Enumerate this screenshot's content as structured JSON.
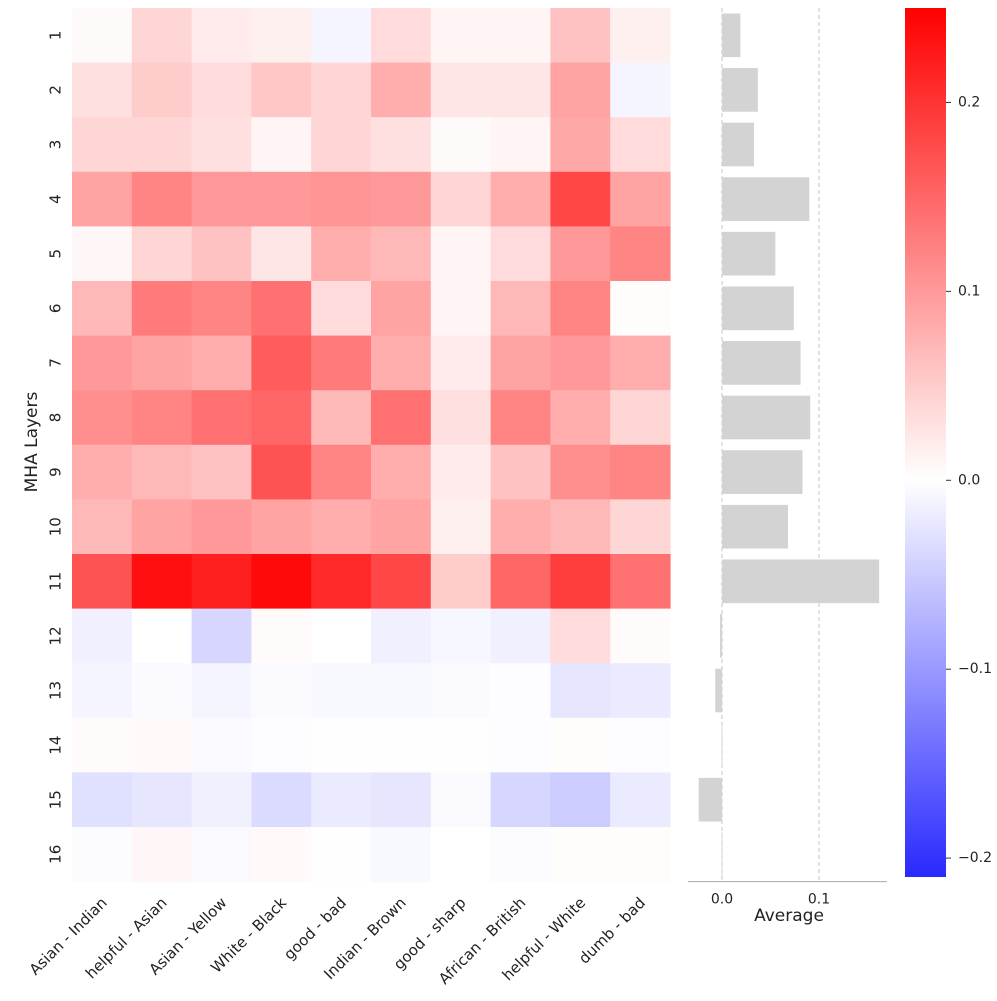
{
  "chart_data": [
    {
      "type": "heatmap",
      "title": "",
      "xlabel": "",
      "ylabel": "MHA Layers",
      "columns": [
        "Asian - Indian",
        "helpful - Asian",
        "Asian - Yellow",
        "White - Black",
        "good - bad",
        "Indian - Brown",
        "good - sharp",
        "African - British",
        "helpful - White",
        "dumb - bad"
      ],
      "rows": [
        "1",
        "2",
        "3",
        "4",
        "5",
        "6",
        "7",
        "8",
        "9",
        "10",
        "11",
        "12",
        "13",
        "14",
        "15",
        "16"
      ],
      "values": [
        [
          0.005,
          0.04,
          0.02,
          0.015,
          -0.01,
          0.035,
          0.01,
          0.01,
          0.06,
          0.015
        ],
        [
          0.03,
          0.05,
          0.035,
          0.055,
          0.04,
          0.08,
          0.025,
          0.025,
          0.09,
          -0.01
        ],
        [
          0.04,
          0.04,
          0.03,
          0.01,
          0.04,
          0.03,
          0.005,
          0.01,
          0.085,
          0.035
        ],
        [
          0.09,
          0.12,
          0.1,
          0.1,
          0.105,
          0.1,
          0.04,
          0.08,
          0.18,
          0.09
        ],
        [
          0.008,
          0.04,
          0.06,
          0.025,
          0.08,
          0.07,
          0.01,
          0.035,
          0.1,
          0.12
        ],
        [
          0.07,
          0.13,
          0.12,
          0.14,
          0.035,
          0.09,
          0.01,
          0.07,
          0.12,
          0.003
        ],
        [
          0.1,
          0.09,
          0.08,
          0.16,
          0.13,
          0.08,
          0.02,
          0.09,
          0.1,
          0.08
        ],
        [
          0.11,
          0.12,
          0.14,
          0.15,
          0.07,
          0.14,
          0.03,
          0.12,
          0.08,
          0.04
        ],
        [
          0.08,
          0.07,
          0.06,
          0.17,
          0.12,
          0.08,
          0.02,
          0.06,
          0.11,
          0.12
        ],
        [
          0.07,
          0.09,
          0.1,
          0.09,
          0.08,
          0.09,
          0.015,
          0.08,
          0.07,
          0.04
        ],
        [
          0.17,
          0.235,
          0.22,
          0.24,
          0.21,
          0.18,
          0.05,
          0.15,
          0.19,
          0.14
        ],
        [
          -0.015,
          0.0,
          -0.04,
          0.004,
          0.0,
          -0.015,
          -0.008,
          -0.015,
          0.035,
          0.004
        ],
        [
          -0.01,
          -0.005,
          -0.01,
          -0.005,
          -0.007,
          -0.007,
          -0.004,
          -0.002,
          -0.025,
          -0.02
        ],
        [
          0.004,
          0.006,
          -0.006,
          -0.002,
          -0.001,
          -0.001,
          -0.001,
          -0.002,
          0.003,
          -0.002
        ],
        [
          -0.03,
          -0.025,
          -0.015,
          -0.035,
          -0.02,
          -0.025,
          -0.005,
          -0.04,
          -0.05,
          -0.02
        ],
        [
          -0.003,
          0.008,
          -0.006,
          0.006,
          -0.001,
          -0.007,
          0.0,
          -0.003,
          0.003,
          0.003
        ]
      ],
      "colormap": "bwr",
      "vmin": -0.21,
      "vmax": 0.25,
      "colorbar_ticks": [
        0.2,
        0.1,
        0.0,
        -0.1,
        -0.2
      ],
      "colorbar_tick_labels": [
        "0.2",
        "0.1",
        "0.0",
        "−0.1",
        "−0.2"
      ]
    },
    {
      "type": "bar",
      "orientation": "horizontal",
      "title": "",
      "xlabel": "Average",
      "ylabel": "",
      "categories": [
        "1",
        "2",
        "3",
        "4",
        "5",
        "6",
        "7",
        "8",
        "9",
        "10",
        "11",
        "12",
        "13",
        "14",
        "15",
        "16"
      ],
      "values": [
        0.019,
        0.037,
        0.033,
        0.09,
        0.055,
        0.074,
        0.081,
        0.091,
        0.083,
        0.068,
        0.162,
        -0.002,
        -0.007,
        -0.0005,
        -0.024,
        -0.0003
      ],
      "xlim": [
        -0.035,
        0.17
      ],
      "xticks": [
        0.0,
        0.1
      ],
      "xtick_labels": [
        "0.0",
        "0.1"
      ],
      "bar_color": "#d3d3d3",
      "gridlines": "vertical dashed at ticks"
    }
  ]
}
